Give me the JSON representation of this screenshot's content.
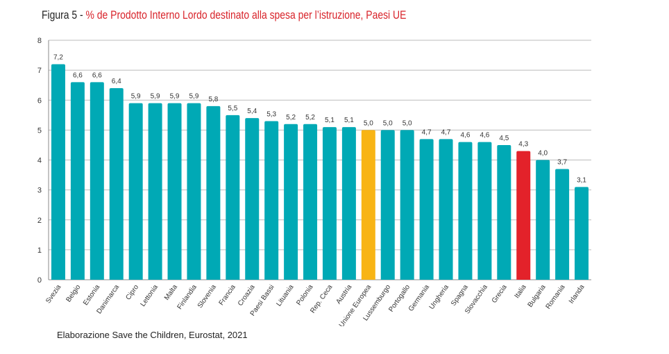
{
  "chart_data": {
    "type": "bar",
    "title_prefix": "Figura 5 - ",
    "title": "% de Prodotto Interno Lordo destinato alla spesa per l’istruzione, Paesi UE",
    "xlabel": "",
    "ylabel": "",
    "ylim": [
      0,
      8
    ],
    "yticks": [
      0,
      1,
      2,
      3,
      4,
      5,
      6,
      7,
      8
    ],
    "grid": true,
    "categories": [
      "Svezia",
      "Belgio",
      "Estonia",
      "Danimarca",
      "Cipro",
      "Lettonia",
      "Malta",
      "Finlandia",
      "Slovenia",
      "Francia",
      "Croazia",
      "Paesi Bassi",
      "Lituania",
      "Polonia",
      "Rep. Ceca",
      "Austria",
      "Unione Europea",
      "Lussemburgo",
      "Portogallo",
      "Germania",
      "Ungheria",
      "Spagna",
      "Slovacchia",
      "Grecia",
      "Italia",
      "Bulgaria",
      "Romania",
      "Irlanda"
    ],
    "values": [
      7.2,
      6.6,
      6.6,
      6.4,
      5.9,
      5.9,
      5.9,
      5.9,
      5.8,
      5.5,
      5.4,
      5.3,
      5.2,
      5.2,
      5.1,
      5.1,
      5.0,
      5.0,
      5.0,
      4.7,
      4.7,
      4.6,
      4.6,
      4.5,
      4.3,
      4.0,
      3.7,
      3.1
    ],
    "data_labels": [
      "7,2",
      "6,6",
      "6,6",
      "6,4",
      "5,9",
      "5,9",
      "5,9",
      "5,9",
      "5,8",
      "5,5",
      "5,4",
      "5,3",
      "5,2",
      "5,2",
      "5,1",
      "5,1",
      "5,0",
      "5,0",
      "5,0",
      "4,7",
      "4,7",
      "4,6",
      "4,6",
      "4,5",
      "4,3",
      "4,0",
      "3,7",
      "3,1"
    ],
    "colors": {
      "default": "#00a9b5",
      "Unione Europea": "#f8b415",
      "Italia": "#e3222a"
    }
  },
  "source": "Elaborazione Save the Children, Eurostat, 2021"
}
